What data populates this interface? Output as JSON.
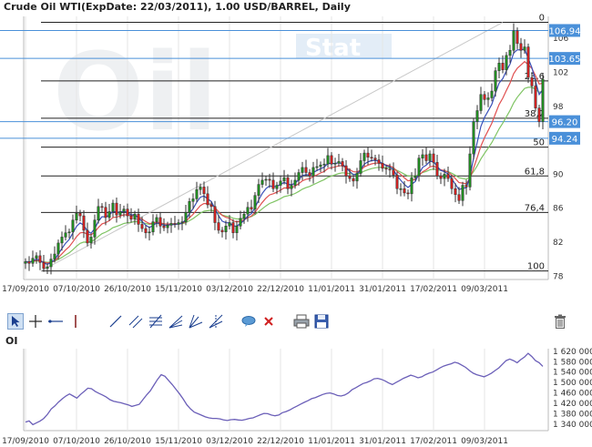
{
  "header": {
    "title": "Crude Oil WTI(ExpDate: 22/03/2011), 1.00 USD/BARREL, Daily"
  },
  "watermark": {
    "text1": "Oil",
    "text2": "Stat"
  },
  "toolbar": {
    "tools": [
      "select-tool",
      "crosshair-tool",
      "horizontal-line-tool",
      "vertical-line-tool",
      "trend-line-tool",
      "parallel-channel-tool",
      "fibonacci-retracement-tool",
      "fan-lines-tool",
      "gann-fan-tool",
      "speed-lines-tool",
      "comment-tool",
      "delete-tool",
      "print-tool",
      "save-tool",
      "trash-tool"
    ]
  },
  "colors": {
    "up": "#228b22",
    "down": "#cc2222",
    "ma_fast": "#3a4fb8",
    "ma_mid": "#e05050",
    "ma_slow": "#7fc463",
    "hline": "#4a90d9",
    "oi_line": "#6b5fb8"
  },
  "chart_data": [
    {
      "type": "candlestick",
      "title": "Crude Oil WTI(ExpDate: 22/03/2011), 1.00 USD/BARREL, Daily",
      "x_tick_labels": [
        "17/09/2010",
        "07/10/2010",
        "26/10/2010",
        "15/11/2010",
        "03/12/2010",
        "22/12/2010",
        "11/01/2011",
        "31/01/2011",
        "17/02/2011",
        "09/03/2011"
      ],
      "y_ticks": [
        78,
        82,
        86,
        90,
        94,
        98,
        102,
        106
      ],
      "ylim": [
        77.6,
        108.6
      ],
      "fib_levels": [
        {
          "label": "0",
          "value": 107.9
        },
        {
          "label": "23,6",
          "value": 101.0
        },
        {
          "label": "38,2",
          "value": 96.6
        },
        {
          "label": "50",
          "value": 93.2
        },
        {
          "label": "61,8",
          "value": 89.8
        },
        {
          "label": "76,4",
          "value": 85.5
        },
        {
          "label": "100",
          "value": 78.6
        }
      ],
      "price_lines": [
        {
          "value": 106.94,
          "label": "106.94"
        },
        {
          "value": 103.65,
          "label": "103.65"
        },
        {
          "value": 96.2,
          "label": "96.20"
        },
        {
          "value": 94.24,
          "label": "94.24"
        }
      ],
      "close": [
        79.7,
        79.5,
        80.1,
        80.4,
        79.6,
        78.9,
        79.1,
        80.0,
        80.6,
        81.9,
        82.6,
        83.1,
        83.2,
        84.6,
        85.4,
        85.1,
        83.4,
        81.9,
        82.6,
        84.6,
        86.2,
        86.1,
        84.9,
        85.6,
        86.6,
        85.2,
        85.6,
        85.9,
        85.1,
        84.7,
        85.3,
        84.1,
        83.6,
        83.1,
        83.2,
        84.4,
        84.9,
        83.9,
        83.7,
        84.0,
        84.2,
        84.1,
        84.3,
        84.4,
        85.5,
        86.8,
        87.1,
        88.2,
        88.5,
        87.7,
        86.4,
        86.2,
        84.3,
        83.4,
        83.2,
        83.9,
        84.3,
        83.1,
        83.9,
        84.8,
        85.3,
        86.1,
        85.9,
        87.5,
        88.8,
        89.3,
        89.4,
        89.3,
        88.3,
        88.7,
        89.2,
        89.6,
        88.3,
        88.7,
        89.3,
        90.2,
        90.8,
        90.2,
        89.8,
        90.8,
        90.9,
        91.1,
        91.2,
        92.2,
        91.2,
        91.3,
        91.5,
        91.0,
        89.8,
        89.5,
        89.2,
        90.1,
        91.6,
        92.5,
        92.0,
        91.9,
        91.7,
        91.3,
        90.7,
        90.6,
        90.5,
        89.9,
        88.3,
        88.3,
        87.8,
        87.7,
        89.6,
        89.8,
        91.9,
        92.3,
        91.6,
        92.4,
        91.4,
        89.8,
        89.5,
        90.0,
        89.5,
        88.3,
        87.6,
        86.9,
        88.7,
        88.5,
        92.4,
        96.2,
        97.5,
        99.4,
        98.8,
        99.0,
        99.8,
        102.2,
        103.1,
        102.3,
        104.0,
        104.6,
        106.9,
        105.4,
        104.6,
        105.0,
        101.4,
        100.4,
        97.8,
        96.2,
        101.2
      ]
    },
    {
      "type": "line",
      "title": "OI",
      "x_tick_labels": [
        "17/09/2010",
        "07/10/2010",
        "26/10/2010",
        "15/11/2010",
        "03/12/2010",
        "22/12/2010",
        "11/01/2011",
        "31/01/2011",
        "17/02/2011",
        "09/03/2011"
      ],
      "y_ticks": [
        1340000,
        1380000,
        1420000,
        1460000,
        1500000,
        1540000,
        1580000,
        1620000
      ],
      "y_tick_labels": [
        "1 340 000",
        "1 380 000",
        "1 420 000",
        "1 460 000",
        "1 500 000",
        "1 540 000",
        "1 580 000",
        "1 620 000"
      ],
      "ylim": [
        1315000,
        1630000
      ],
      "values": [
        1348000,
        1352000,
        1338000,
        1345000,
        1352000,
        1362000,
        1378000,
        1398000,
        1410000,
        1425000,
        1437000,
        1448000,
        1456000,
        1448000,
        1440000,
        1454000,
        1466000,
        1478000,
        1476000,
        1466000,
        1458000,
        1452000,
        1444000,
        1434000,
        1428000,
        1425000,
        1422000,
        1418000,
        1414000,
        1408000,
        1412000,
        1416000,
        1434000,
        1452000,
        1468000,
        1490000,
        1512000,
        1530000,
        1524000,
        1508000,
        1492000,
        1474000,
        1456000,
        1436000,
        1414000,
        1398000,
        1386000,
        1380000,
        1374000,
        1368000,
        1364000,
        1362000,
        1362000,
        1360000,
        1356000,
        1354000,
        1357000,
        1358000,
        1356000,
        1355000,
        1358000,
        1362000,
        1364000,
        1370000,
        1376000,
        1381000,
        1380000,
        1375000,
        1372000,
        1375000,
        1384000,
        1388000,
        1394000,
        1402000,
        1409000,
        1417000,
        1424000,
        1430000,
        1438000,
        1442000,
        1448000,
        1454000,
        1458000,
        1460000,
        1456000,
        1450000,
        1448000,
        1452000,
        1460000,
        1472000,
        1480000,
        1488000,
        1496000,
        1500000,
        1506000,
        1514000,
        1516000,
        1512000,
        1506000,
        1498000,
        1492000,
        1500000,
        1508000,
        1516000,
        1522000,
        1528000,
        1524000,
        1518000,
        1522000,
        1530000,
        1536000,
        1540000,
        1548000,
        1556000,
        1563000,
        1568000,
        1572000,
        1578000,
        1574000,
        1566000,
        1558000,
        1546000,
        1536000,
        1530000,
        1526000,
        1522000,
        1528000,
        1536000,
        1546000,
        1556000,
        1570000,
        1584000,
        1590000,
        1584000,
        1576000,
        1588000,
        1598000,
        1612000,
        1600000,
        1584000,
        1576000,
        1562000
      ]
    }
  ]
}
